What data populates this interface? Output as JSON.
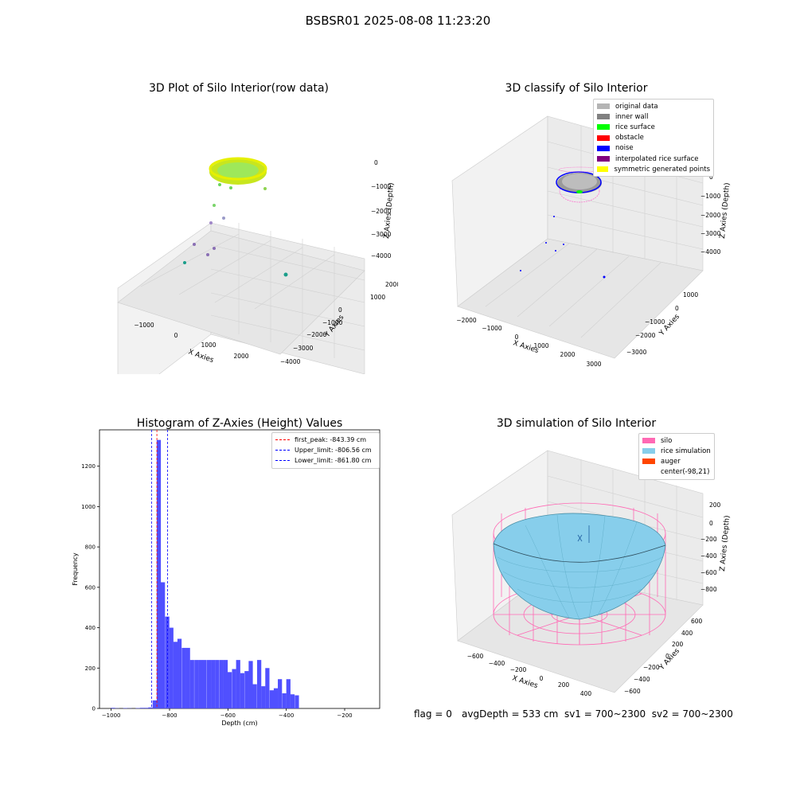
{
  "suptitle": "BSBSR01 2025-08-08 11:23:20",
  "footer": {
    "flag": "flag = 0",
    "stats": "avgDepth = 533 cm  sv1 = 700~2300  sv2 = 700~2300"
  },
  "panel_raw": {
    "title": "3D Plot of Silo Interior(row data)",
    "xlabel": "X Axies",
    "ylabel": "Y Axies",
    "zlabel": "Z Axies (Depth)",
    "xticks": [
      "−1000",
      "0",
      "1000",
      "2000"
    ],
    "yticks": [
      "2000",
      "1000",
      "0",
      "−1000",
      "−2000",
      "−3000",
      "−4000"
    ],
    "zticks": [
      "0",
      "−1000",
      "−2000",
      "−3000",
      "−4000"
    ]
  },
  "panel_classify": {
    "title": "3D classify of Silo Interior",
    "xlabel": "X Axies",
    "ylabel": "Y Axies",
    "zlabel": "Z Axies (Depth)",
    "xticks": [
      "−2000",
      "−1000",
      "0",
      "1000",
      "2000",
      "3000"
    ],
    "yticks": [
      "1000",
      "0",
      "−1000",
      "−2000",
      "−3000"
    ],
    "zticks": [
      "0",
      "−1000",
      "−2000",
      "−3000",
      "−4000"
    ],
    "legend": [
      {
        "label": "original data",
        "color": "#b4b4b4"
      },
      {
        "label": "inner wall",
        "color": "#808080"
      },
      {
        "label": "rice surface",
        "color": "#00ff00"
      },
      {
        "label": "obstacle",
        "color": "#ff0000"
      },
      {
        "label": "noise",
        "color": "#0000ff"
      },
      {
        "label": "interpolated rice surface",
        "color": "#800080"
      },
      {
        "label": "symmetric generated points",
        "color": "#ffff00"
      }
    ]
  },
  "panel_sim": {
    "title": "3D simulation of Silo Interior",
    "xlabel": "X Axies",
    "ylabel": "Y Axies",
    "zlabel": "Z Axies (Depth)",
    "xticks": [
      "−600",
      "−400",
      "−200",
      "0",
      "200",
      "400"
    ],
    "yticks": [
      "600",
      "400",
      "200",
      "0",
      "−200",
      "−400",
      "−600"
    ],
    "zticks": [
      "200",
      "0",
      "−200",
      "−400",
      "−600",
      "−800"
    ],
    "legend": [
      {
        "label": "silo",
        "color": "#ff69b4"
      },
      {
        "label": "rice simulation",
        "color": "#87ceeb"
      },
      {
        "label": "auger",
        "color": "#ff4500"
      },
      {
        "label": "center(-98,21)",
        "color": ""
      }
    ]
  },
  "chart_data": [
    {
      "type": "bar",
      "title": "Histogram of Z-Axies (Height) Values",
      "xlabel": "Depth (cm)",
      "ylabel": "Frequency",
      "xlim": [
        -1040,
        -80
      ],
      "ylim": [
        0,
        1380
      ],
      "xticks": [
        -1000,
        -800,
        -600,
        -400,
        -200
      ],
      "xtick_labels": [
        "−1000",
        "−800",
        "−600",
        "−400",
        "−200"
      ],
      "yticks": [
        0,
        200,
        400,
        600,
        800,
        1000,
        1200
      ],
      "bin_width": 14.3,
      "bins": [
        {
          "x": -1001,
          "v": 3
        },
        {
          "x": -987,
          "v": 1
        },
        {
          "x": -973,
          "v": 0
        },
        {
          "x": -959,
          "v": 2
        },
        {
          "x": -944,
          "v": 1
        },
        {
          "x": -930,
          "v": 0
        },
        {
          "x": -916,
          "v": 2
        },
        {
          "x": -901,
          "v": 3
        },
        {
          "x": -887,
          "v": 3
        },
        {
          "x": -873,
          "v": 5
        },
        {
          "x": -858,
          "v": 40
        },
        {
          "x": -844,
          "v": 1330
        },
        {
          "x": -830,
          "v": 625
        },
        {
          "x": -815,
          "v": 455
        },
        {
          "x": -801,
          "v": 400
        },
        {
          "x": -787,
          "v": 330
        },
        {
          "x": -773,
          "v": 345
        },
        {
          "x": -758,
          "v": 300
        },
        {
          "x": -744,
          "v": 300
        },
        {
          "x": -730,
          "v": 240
        },
        {
          "x": -715,
          "v": 240
        },
        {
          "x": -701,
          "v": 240
        },
        {
          "x": -687,
          "v": 240
        },
        {
          "x": -672,
          "v": 240
        },
        {
          "x": -658,
          "v": 240
        },
        {
          "x": -644,
          "v": 240
        },
        {
          "x": -629,
          "v": 240
        },
        {
          "x": -615,
          "v": 240
        },
        {
          "x": -601,
          "v": 180
        },
        {
          "x": -586,
          "v": 195
        },
        {
          "x": -572,
          "v": 240
        },
        {
          "x": -558,
          "v": 175
        },
        {
          "x": -543,
          "v": 185
        },
        {
          "x": -529,
          "v": 235
        },
        {
          "x": -515,
          "v": 120
        },
        {
          "x": -500,
          "v": 240
        },
        {
          "x": -486,
          "v": 110
        },
        {
          "x": -472,
          "v": 200
        },
        {
          "x": -457,
          "v": 90
        },
        {
          "x": -443,
          "v": 100
        },
        {
          "x": -429,
          "v": 145
        },
        {
          "x": -414,
          "v": 75
        },
        {
          "x": -400,
          "v": 145
        },
        {
          "x": -386,
          "v": 70
        },
        {
          "x": -371,
          "v": 65
        }
      ],
      "vlines": [
        {
          "x": -843.39,
          "color": "#ff0000",
          "label": "first_peak: -843.39 cm"
        },
        {
          "x": -806.56,
          "color": "#0000ff",
          "label": "Upper_limit: -806.56 cm"
        },
        {
          "x": -861.8,
          "color": "#0000ff",
          "label": "Lower_limit: -861.80 cm"
        }
      ],
      "bar_color": "#5050ff"
    }
  ]
}
